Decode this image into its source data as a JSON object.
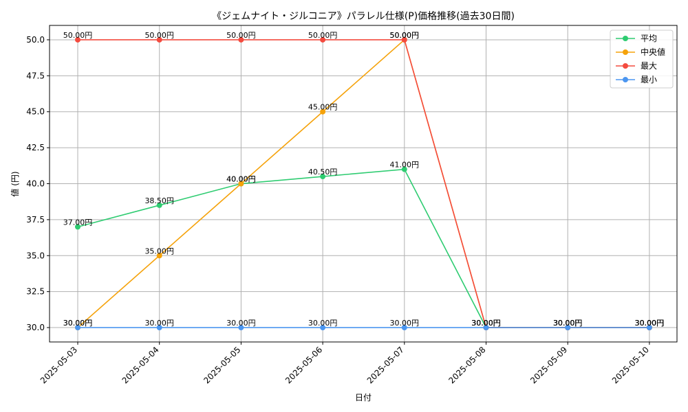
{
  "chart_data": {
    "type": "line",
    "title": "《ジェムナイト・ジルコニア》パラレル仕様(P)価格推移(過去30日間)",
    "xlabel": "日付",
    "ylabel": "値 (円)",
    "ylim": [
      29.0,
      51.0
    ],
    "yticks": [
      30.0,
      32.5,
      35.0,
      37.5,
      40.0,
      42.5,
      45.0,
      47.5,
      50.0
    ],
    "ytick_labels": [
      "30.0",
      "32.5",
      "35.0",
      "37.5",
      "40.0",
      "42.5",
      "45.0",
      "47.5",
      "50.0"
    ],
    "grid": true,
    "legend_position": "top-right",
    "categories": [
      "2025-05-03",
      "2025-05-04",
      "2025-05-05",
      "2025-05-06",
      "2025-05-07",
      "2025-05-08",
      "2025-05-09",
      "2025-05-10"
    ],
    "series": [
      {
        "name": "平均",
        "color": "#2ecc71",
        "values": [
          37.0,
          38.5,
          40.0,
          40.5,
          41.0,
          30.0,
          30.0,
          30.0
        ],
        "labels": [
          "37.00円",
          "38.50円",
          "40.00円",
          "40.50円",
          "41.00円",
          "30.00円",
          "30.00円",
          "30.00円"
        ]
      },
      {
        "name": "中央値",
        "color": "#f5a20a",
        "values": [
          30.0,
          35.0,
          40.0,
          45.0,
          50.0,
          30.0,
          30.0,
          30.0
        ],
        "labels": [
          "30.00円",
          "35.00円",
          "40.00円",
          "45.00円",
          "50.00円",
          "30.00円",
          "30.00円",
          "30.00円"
        ]
      },
      {
        "name": "最大",
        "color": "#f44b3f",
        "values": [
          50.0,
          50.0,
          50.0,
          50.0,
          50.0,
          30.0,
          30.0,
          30.0
        ],
        "labels": [
          "50.00円",
          "50.00円",
          "50.00円",
          "50.00円",
          "50.00円",
          "30.00円",
          "30.00円",
          "30.00円"
        ]
      },
      {
        "name": "最小",
        "color": "#4b96f0",
        "values": [
          30.0,
          30.0,
          30.0,
          30.0,
          30.0,
          30.0,
          30.0,
          30.0
        ],
        "labels": [
          "30.00円",
          "30.00円",
          "30.00円",
          "30.00円",
          "30.00円",
          "30.00円",
          "30.00円",
          "30.00円"
        ]
      }
    ]
  }
}
